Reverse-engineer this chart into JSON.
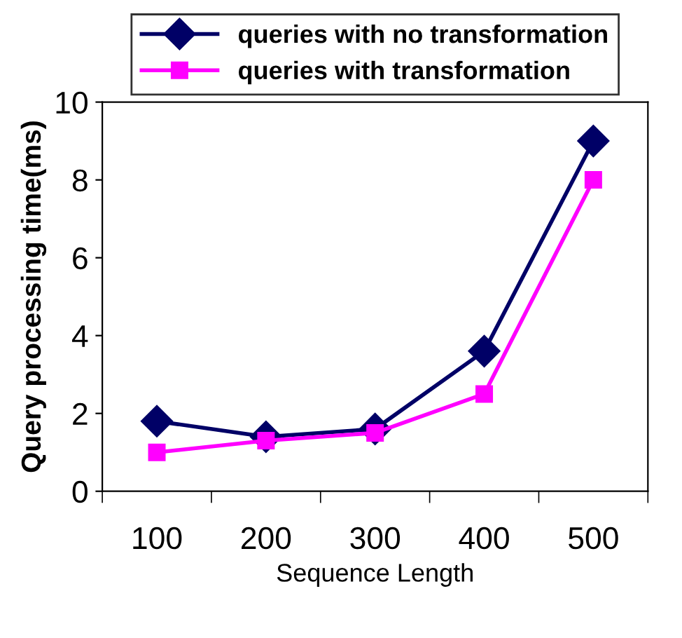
{
  "chart_data": {
    "type": "line",
    "xlabel": "Sequence Length",
    "ylabel": "Query processing time(ms)",
    "categories": [
      "100",
      "200",
      "300",
      "400",
      "500"
    ],
    "series": [
      {
        "name": "queries with no transformation",
        "color": "#000066",
        "values": [
          1.8,
          1.4,
          1.6,
          3.6,
          9.0
        ],
        "marker": "diamond"
      },
      {
        "name": "queries with transformation",
        "color": "#ff00ff",
        "values": [
          1.0,
          1.3,
          1.5,
          2.5,
          8.0
        ],
        "marker": "square"
      }
    ],
    "ylim": [
      0,
      10
    ],
    "yticks": [
      0,
      2,
      4,
      6,
      8,
      10
    ],
    "grid": false,
    "legend": "top",
    "line_style": "solid"
  }
}
